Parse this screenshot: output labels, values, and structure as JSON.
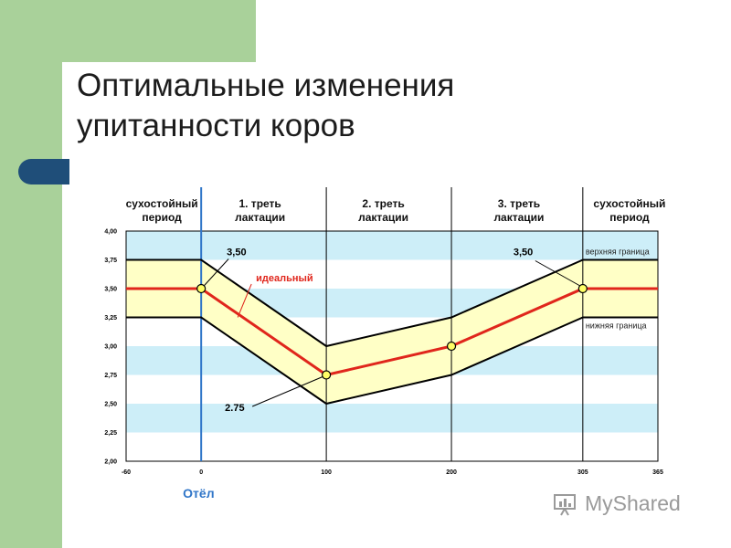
{
  "slide": {
    "title_line1": "Оптимальные изменения",
    "title_line2": "упитанности коров",
    "colors": {
      "green": "#a9d19a",
      "blue_accent": "#1f4e79"
    }
  },
  "watermark": {
    "text": "MyShared",
    "icon": "myshared-logo-icon"
  },
  "chart_data": {
    "type": "line",
    "x": [
      -60,
      0,
      100,
      200,
      305,
      365
    ],
    "xticks": [
      "-60",
      "0",
      "100",
      "200",
      "305",
      "365"
    ],
    "yticks": [
      "2,00",
      "2,25",
      "2,50",
      "2,75",
      "3,00",
      "3,25",
      "3,50",
      "3,75",
      "4,00"
    ],
    "xlim": [
      -60,
      365
    ],
    "ylim": [
      2.0,
      4.0
    ],
    "series": [
      {
        "name": "идеальный",
        "values": [
          3.5,
          3.5,
          2.75,
          3.0,
          3.5,
          3.5
        ],
        "color": "#e0261c",
        "markers": [
          0,
          100,
          200,
          305
        ]
      },
      {
        "name": "верхняя граница",
        "values": [
          3.75,
          3.75,
          3.0,
          3.25,
          3.75,
          3.75
        ],
        "color": "#000000"
      },
      {
        "name": "нижняя граница",
        "values": [
          3.25,
          3.25,
          2.5,
          2.75,
          3.25,
          3.25
        ],
        "color": "#000000"
      }
    ],
    "band_fill": "#ffffc6",
    "stripe_color": "#cdeef8",
    "periods": [
      {
        "line1": "сухостойный",
        "line2": "период"
      },
      {
        "line1": "1. треть",
        "line2": "лактации"
      },
      {
        "line1": "2. треть",
        "line2": "лактации"
      },
      {
        "line1": "3. треть",
        "line2": "лактации"
      },
      {
        "line1": "сухостойный",
        "line2": "период"
      }
    ],
    "period_boundaries": [
      0,
      100,
      200,
      305
    ],
    "annotations": {
      "ideal_label": "идеальный",
      "upper_label": "верхняя граница",
      "lower_label": "нижняя граница",
      "value_350_a": "3,50",
      "value_350_b": "3,50",
      "value_275": "2.75",
      "calving_label": "Отёл"
    }
  }
}
